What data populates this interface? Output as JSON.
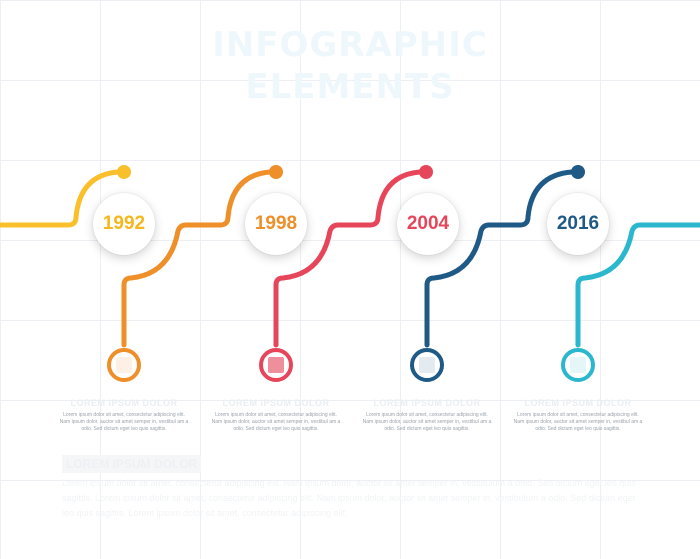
{
  "title": {
    "line1": "INFOGRAPHIC",
    "line2": "ELEMENTS"
  },
  "colors": {
    "yellow": "#f9c02c",
    "orange": "#ee8f2a",
    "red": "#e6455a",
    "navy": "#1f5a87",
    "cyan": "#2bb7cd"
  },
  "milestones": [
    {
      "year": "1992",
      "color": "#f9c02c",
      "year_color": "#f5b81c",
      "icon_color": "#ee8f2a",
      "icon": "placeholder-icon",
      "title": "LOREM IPSUM DOLOR",
      "text": "Lorem ipsum dolor sit amet, consectetur adipiscing elit. Nam ipsum dolor, auctor sit amet semper in, vestibul am a odio. Sed dictum eget leo quis sagittis."
    },
    {
      "year": "1998",
      "color": "#ee8f2a",
      "year_color": "#ee8f2a",
      "icon_color": "#e6455a",
      "icon": "placeholder-icon",
      "title": "LOREM IPSUM DOLOR",
      "text": "Lorem ipsum dolor sit amet, consectetur adipiscing elit. Nam ipsum dolor, auctor sit amet semper in, vestibul am a odio. Sed dictum eget leo quis sagittis."
    },
    {
      "year": "2004",
      "color": "#e6455a",
      "year_color": "#e6455a",
      "icon_color": "#1f5a87",
      "icon": "placeholder-icon",
      "title": "LOREM IPSUM DOLOR",
      "text": "Lorem ipsum dolor sit amet, consectetur adipiscing elit. Nam ipsum dolor, auctor sit amet semper in, vestibul am a odio. Sed dictum eget leo quis sagittis."
    },
    {
      "year": "2016",
      "color": "#1f5a87",
      "year_color": "#1f5a87",
      "icon_color": "#2bb7cd",
      "icon": "placeholder-icon",
      "title": "LOREM IPSUM DOLOR",
      "text": "Lorem ipsum dolor sit amet, consectetur adipiscing elit. Nam ipsum dolor, auctor sit amet semper in, vestibul am a odio. Sed dictum eget leo quis sagittis."
    }
  ],
  "footer": {
    "heading": "LOREM IPSUM DOLOR",
    "body": "Lorem ipsum dolor sit amet, consectetur adipiscing elit. Nam ipsum dolor, auctor sit amet semper in, vestibulum a odio. Sed dictum eget leo quis sagittis. Lorem ipsum dolor sit amet, consectetur adipiscing elit. Nam ipsum dolor, auctor sit amet semper in, vestibulum a odio. Sed dictum eget leo quis sagittis. Lorem ipsum dolor sit amet, consectetur adipiscing elit."
  }
}
